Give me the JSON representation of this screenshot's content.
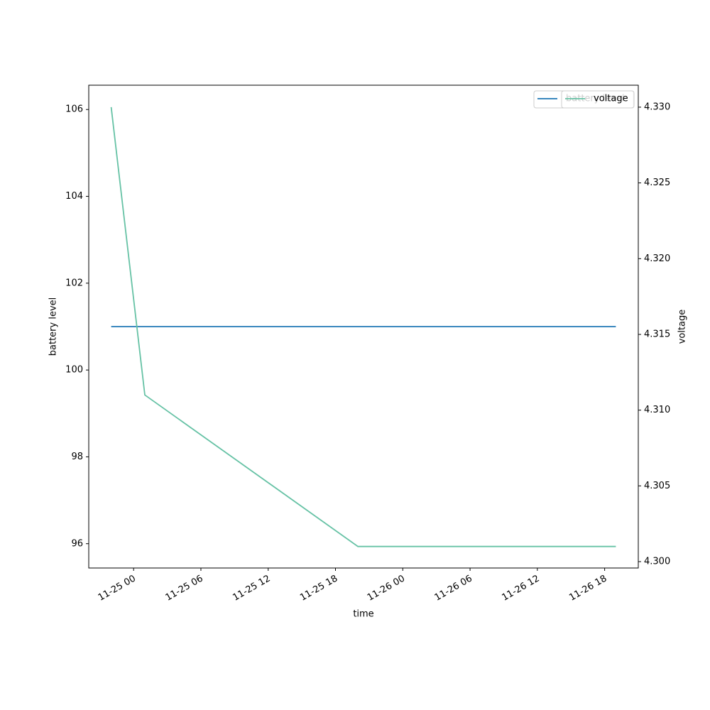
{
  "chart_data": {
    "type": "line",
    "x_label": "time",
    "y_label": "battery level",
    "y2_label": "voltage",
    "x": [
      "11-24 22",
      "11-25 01",
      "11-25 20",
      "11-26 19"
    ],
    "xlim": [
      "11-24 20",
      "11-26 21"
    ],
    "xticks": [
      "11-25 00",
      "11-25 06",
      "11-25 12",
      "11-25 18",
      "11-26 00",
      "11-26 06",
      "11-26 12",
      "11-26 18"
    ],
    "ylim": [
      95.44,
      106.56
    ],
    "yticks": [
      96,
      98,
      100,
      102,
      104,
      106
    ],
    "y2lim": [
      4.29958,
      4.33145
    ],
    "y2ticks": [
      {
        "value": 4.3,
        "label": "4.300"
      },
      4.305,
      {
        "value": 4.31,
        "label": "4.310"
      },
      4.315,
      {
        "value": 4.32,
        "label": "4.320"
      },
      4.325,
      {
        "value": 4.33,
        "label": "4.330"
      }
    ],
    "legend": "upper right",
    "series": [
      {
        "name": "battery level",
        "color": "#1f77b4",
        "values": [
          101,
          101,
          101,
          101
        ]
      },
      {
        "name": "voltage",
        "color": "#66c2a5",
        "axis": "y2",
        "values": [
          4.33,
          4.311,
          4.301,
          4.301
        ]
      }
    ]
  }
}
